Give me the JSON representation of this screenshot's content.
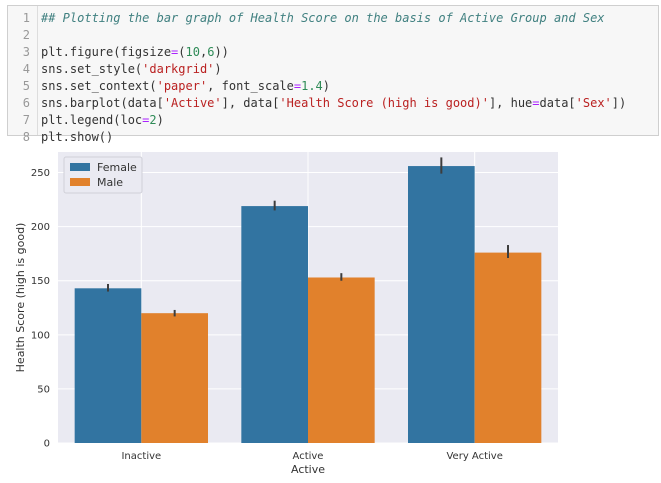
{
  "code_cell": {
    "lines": [
      {
        "num": "1",
        "parts": [
          {
            "t": "## Plotting the bar graph of Health Score on the basis of Active Group and Sex",
            "c": "cm"
          }
        ]
      },
      {
        "num": "2",
        "parts": []
      },
      {
        "num": "3",
        "parts": [
          {
            "t": "plt.figure(figsize",
            "c": ""
          },
          {
            "t": "=",
            "c": "op"
          },
          {
            "t": "(",
            "c": ""
          },
          {
            "t": "10",
            "c": "num"
          },
          {
            "t": ",",
            "c": ""
          },
          {
            "t": "6",
            "c": "num"
          },
          {
            "t": "))",
            "c": ""
          }
        ]
      },
      {
        "num": "4",
        "parts": [
          {
            "t": "sns.set_style(",
            "c": ""
          },
          {
            "t": "'darkgrid'",
            "c": "str"
          },
          {
            "t": ")",
            "c": ""
          }
        ]
      },
      {
        "num": "5",
        "parts": [
          {
            "t": "sns.set_context(",
            "c": ""
          },
          {
            "t": "'paper'",
            "c": "str"
          },
          {
            "t": ", font_scale",
            "c": ""
          },
          {
            "t": "=",
            "c": "op"
          },
          {
            "t": "1.4",
            "c": "num"
          },
          {
            "t": ")",
            "c": ""
          }
        ]
      },
      {
        "num": "6",
        "parts": [
          {
            "t": "sns.barplot(data[",
            "c": ""
          },
          {
            "t": "'Active'",
            "c": "str"
          },
          {
            "t": "], data[",
            "c": ""
          },
          {
            "t": "'Health Score (high is good)'",
            "c": "str"
          },
          {
            "t": "], hue",
            "c": ""
          },
          {
            "t": "=",
            "c": "op"
          },
          {
            "t": "data[",
            "c": ""
          },
          {
            "t": "'Sex'",
            "c": "str"
          },
          {
            "t": "])",
            "c": ""
          }
        ]
      },
      {
        "num": "7",
        "parts": [
          {
            "t": "plt.legend(loc",
            "c": ""
          },
          {
            "t": "=",
            "c": "op"
          },
          {
            "t": "2",
            "c": "num"
          },
          {
            "t": ")",
            "c": ""
          }
        ]
      },
      {
        "num": "8",
        "parts": [
          {
            "t": "plt.show()",
            "c": ""
          }
        ]
      }
    ]
  },
  "chart_data": {
    "type": "bar",
    "categories": [
      "Inactive",
      "Active",
      "Very Active"
    ],
    "series": [
      {
        "name": "Female",
        "values": [
          143,
          219,
          256
        ],
        "err_low": [
          140,
          215,
          249
        ],
        "err_high": [
          147,
          224,
          264
        ],
        "color": "#3274a1"
      },
      {
        "name": "Male",
        "values": [
          120,
          153,
          176
        ],
        "err_low": [
          117,
          150,
          171
        ],
        "err_high": [
          123,
          157,
          183
        ],
        "color": "#e1812c"
      }
    ],
    "xlabel": "Active",
    "ylabel": "Health Score (high is good)",
    "yticks": [
      0,
      50,
      100,
      150,
      200,
      250
    ],
    "ylim": [
      0,
      269
    ],
    "grid": true,
    "legend": "upper-left",
    "background": "#eaeaf2",
    "errbar_color": "#3d3d3d"
  }
}
